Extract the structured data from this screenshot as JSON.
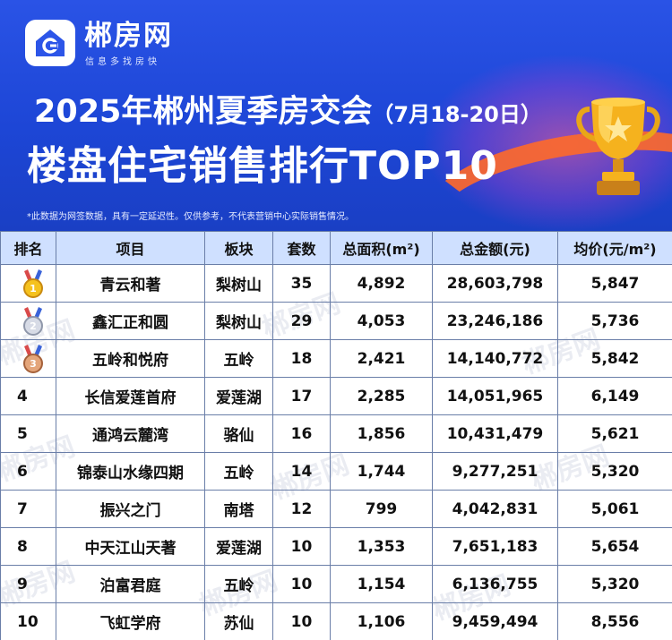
{
  "brand": {
    "name": "郴房网",
    "slogan": "信息多找房快"
  },
  "title": {
    "line1": "2025年郴州夏季房交会",
    "line1_sub": "（7月18-20日）",
    "line2": "楼盘住宅销售排行TOP10"
  },
  "note": "*此数据为网签数据，具有一定延迟性。仅供参考，不代表营销中心实际销售情况。",
  "watermark": "郴房网",
  "colors": {
    "header_blue": "#1f44c8",
    "table_header": "#cfe0ff",
    "accent_orange": "#ff6a2a",
    "gold": "#f5b21e"
  },
  "table": {
    "headers": [
      "排名",
      "项目",
      "板块",
      "套数",
      "总面积(m²)",
      "总金额(元)",
      "均价(元/m²)"
    ],
    "rows": [
      {
        "rank": "1",
        "project": "青云和著",
        "district": "梨树山",
        "units": "35",
        "area": "4,892",
        "amount": "28,603,798",
        "price": "5,847",
        "medal": "gold-medal-icon"
      },
      {
        "rank": "2",
        "project": "鑫汇正和圆",
        "district": "梨树山",
        "units": "29",
        "area": "4,053",
        "amount": "23,246,186",
        "price": "5,736",
        "medal": "silver-medal-icon"
      },
      {
        "rank": "3",
        "project": "五岭和悦府",
        "district": "五岭",
        "units": "18",
        "area": "2,421",
        "amount": "14,140,772",
        "price": "5,842",
        "medal": "bronze-medal-icon"
      },
      {
        "rank": "4",
        "project": "长信爱莲首府",
        "district": "爱莲湖",
        "units": "17",
        "area": "2,285",
        "amount": "14,051,965",
        "price": "6,149"
      },
      {
        "rank": "5",
        "project": "通鸿云麓湾",
        "district": "骆仙",
        "units": "16",
        "area": "1,856",
        "amount": "10,431,479",
        "price": "5,621"
      },
      {
        "rank": "6",
        "project": "锦泰山水缘四期",
        "district": "五岭",
        "units": "14",
        "area": "1,744",
        "amount": "9,277,251",
        "price": "5,320"
      },
      {
        "rank": "7",
        "project": "振兴之门",
        "district": "南塔",
        "units": "12",
        "area": "799",
        "amount": "4,042,831",
        "price": "5,061"
      },
      {
        "rank": "8",
        "project": "中天江山天著",
        "district": "爱莲湖",
        "units": "10",
        "area": "1,353",
        "amount": "7,651,183",
        "price": "5,654"
      },
      {
        "rank": "9",
        "project": "泊富君庭",
        "district": "五岭",
        "units": "10",
        "area": "1,154",
        "amount": "6,136,755",
        "price": "5,320"
      },
      {
        "rank": "10",
        "project": "飞虹学府",
        "district": "苏仙",
        "units": "10",
        "area": "1,106",
        "amount": "9,459,494",
        "price": "8,556"
      }
    ]
  }
}
